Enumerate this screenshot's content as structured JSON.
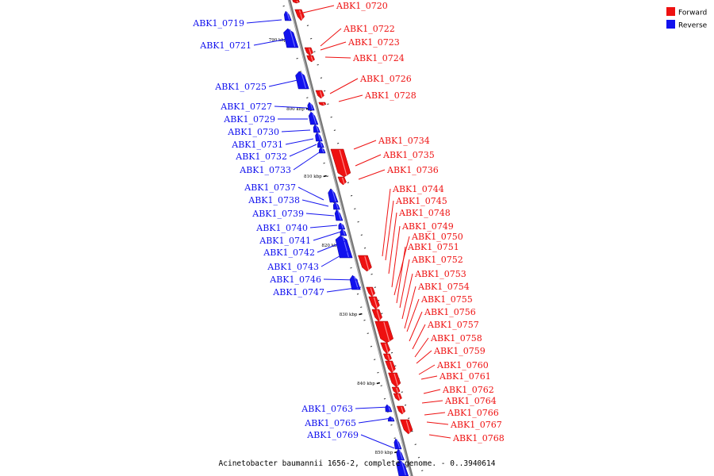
{
  "caption": "Acinetobacter baumannii 1656-2, complete genome. - 0..3940614",
  "colors": {
    "forward": "#ee1111",
    "reverse": "#1212ee",
    "axis": "#777777"
  },
  "legend": {
    "forward": "Forward",
    "reverse": "Reverse"
  },
  "kbp_labels": [
    "790 kbp",
    "800 kbp",
    "810 kbp",
    "820 kbp",
    "830 kbp",
    "840 kbp",
    "850 kbp"
  ],
  "reverse_genes": [
    "ABK1_0719",
    "ABK1_0721",
    "ABK1_0725",
    "ABK1_0727",
    "ABK1_0729",
    "ABK1_0730",
    "ABK1_0731",
    "ABK1_0732",
    "ABK1_0733",
    "ABK1_0737",
    "ABK1_0738",
    "ABK1_0739",
    "ABK1_0740",
    "ABK1_0741",
    "ABK1_0742",
    "ABK1_0743",
    "ABK1_0746",
    "ABK1_0747",
    "ABK1_0763",
    "ABK1_0765",
    "ABK1_0769"
  ],
  "forward_genes": [
    "ABK1_0720",
    "ABK1_0722",
    "ABK1_0723",
    "ABK1_0724",
    "ABK1_0726",
    "ABK1_0728",
    "ABK1_0734",
    "ABK1_0735",
    "ABK1_0736",
    "ABK1_0744",
    "ABK1_0745",
    "ABK1_0748",
    "ABK1_0749",
    "ABK1_0750",
    "ABK1_0751",
    "ABK1_0752",
    "ABK1_0753",
    "ABK1_0754",
    "ABK1_0755",
    "ABK1_0756",
    "ABK1_0757",
    "ABK1_0758",
    "ABK1_0759",
    "ABK1_0760",
    "ABK1_0761",
    "ABK1_0762",
    "ABK1_0764",
    "ABK1_0766",
    "ABK1_0767",
    "ABK1_0768"
  ]
}
